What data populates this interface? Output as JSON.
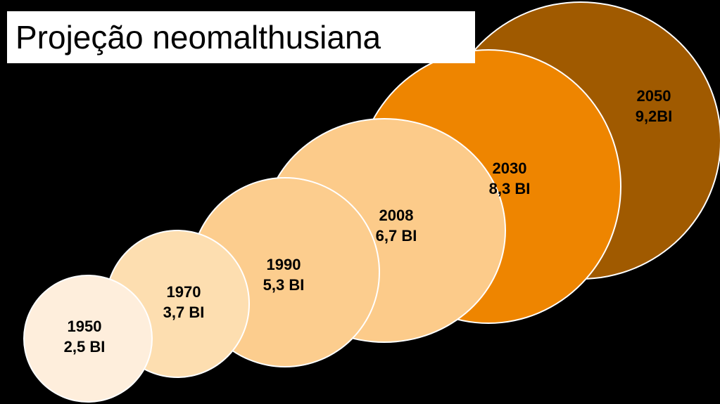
{
  "title": "Projeção neomalthusiana",
  "bubbles": [
    {
      "year": "1950",
      "population": "2,5 BI",
      "color": "#FEEEDC"
    },
    {
      "year": "1970",
      "population": "3,7 BI",
      "color": "#FDDEB0"
    },
    {
      "year": "1990",
      "population": "5,3 BI",
      "color": "#FCCD8E"
    },
    {
      "year": "2008",
      "population": "6,7 BI",
      "color": "#FCCB8A"
    },
    {
      "year": "2030",
      "population": "8,3 BI",
      "color": "#EE8500"
    },
    {
      "year": "2050",
      "population": "9,2BI",
      "color": "#A05A00"
    }
  ]
}
